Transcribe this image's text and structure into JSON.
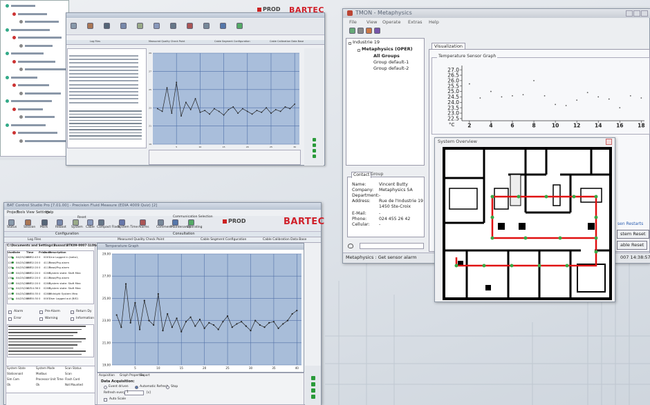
{
  "top_window": {
    "brand": "BARTEC",
    "prod": "PROD",
    "tabs": [
      "Log Files",
      "Measured Quality Check Point",
      "Cable Segment Configuration",
      "Cable Calibration Data Base"
    ],
    "chart": {
      "type": "line",
      "x": [
        1,
        2,
        3,
        4,
        5,
        6,
        7,
        8,
        9,
        10,
        11,
        12,
        13,
        14,
        15,
        16,
        17,
        18,
        19,
        20,
        21,
        22,
        23,
        24,
        25,
        26,
        27,
        28,
        29,
        30
      ],
      "values": [
        22.9,
        22.6,
        25.2,
        22.4,
        25.8,
        22.1,
        23.6,
        22.8,
        24.0,
        22.5,
        22.7,
        22.3,
        22.9,
        22.6,
        22.2,
        22.8,
        23.1,
        22.4,
        22.9,
        22.6,
        22.3,
        22.7,
        22.5,
        23.0,
        22.4,
        22.8,
        22.6,
        23.1,
        22.9,
        23.4
      ],
      "xlim": [
        0,
        31
      ],
      "ylim": [
        19,
        29
      ],
      "xticks": [
        5,
        10,
        15,
        20,
        25,
        30
      ],
      "yticks": [
        19,
        21,
        23,
        25,
        27,
        29
      ],
      "color": "#222222",
      "grid": true
    }
  },
  "main_window": {
    "title": "BAT Control Studio Pro [7.01.00] - Precision Fluid Measure (EDIA 4009 Quiz) [2]",
    "menu": [
      "Project",
      "Tools",
      "View",
      "Settings",
      "Help"
    ],
    "toolbar": [
      "Status",
      "Session",
      "Mark",
      "Reboot",
      "System",
      "Cable",
      "Compact Flash",
      "System Time",
      "Alarms",
      "Comment",
      "Maintenance",
      "Operating"
    ],
    "reset": "Reset",
    "comm": "Communication Selection",
    "brand": "BARTEC",
    "prod": "PROD",
    "tabs": [
      "Configuration",
      "Consultation"
    ],
    "subtabs": [
      "Log Files",
      "Measured Quality Check Point",
      "Cable Segment Configuration",
      "Cable Calibration Data Base"
    ],
    "path": "C:\\Documents and Settings\\Bussoz\\BTK09-0007-1LOG",
    "log": {
      "columns": [
        "User",
        "Date",
        "Time",
        "Prior",
        "Code",
        "Description"
      ],
      "rows": [
        [
          "128",
          "04/25/2007",
          "09:02:43",
          "0",
          "0007",
          "Line Logged in (beta1,"
        ],
        [
          "128",
          "04/25/2007",
          "09:02:20",
          "0",
          "4113",
          "Read/Prg alarm"
        ],
        [
          "129",
          "04/25/2007",
          "09:02:20",
          "0",
          "4113",
          "Read/Prg alarm"
        ],
        [
          "128",
          "04/25/2007",
          "09:02:20",
          "0",
          "0208",
          "System state: Stoft Mea"
        ],
        [
          "130",
          "04/25/2007",
          "09:02:20",
          "0",
          "4113",
          "Read/Prg alarm"
        ],
        [
          "128",
          "04/25/2007",
          "09:02:20",
          "0",
          "0208",
          "System state: Stoft Mea"
        ],
        [
          "170",
          "04/25/2007",
          "11:14:36",
          "0",
          "0208",
          "System state: Stoft Mea"
        ],
        [
          "119",
          "04/25/2007",
          "09:00:35",
          "0",
          "0208",
          "Midnight System Mea"
        ],
        [
          "170",
          "04/25/2007",
          "09:00:30",
          "0",
          "0007",
          "User Logged out (BIS1"
        ]
      ]
    },
    "filters": [
      "Alarm",
      "Pre-Alarm",
      "Return Dy",
      "Error",
      "Warning",
      "Information"
    ],
    "info": [
      [
        "System State",
        "System Mode",
        "Scan Status"
      ],
      [
        "Stationnaid",
        "Modbus",
        "Scan"
      ],
      [
        "Sim Com",
        "Processor Unit Time",
        "Flash Card"
      ],
      [
        "Ok",
        "Ok",
        "Not Mounted"
      ]
    ],
    "chart": {
      "type": "line",
      "title": "Temperature Graph",
      "x": [
        1,
        2,
        3,
        4,
        5,
        6,
        7,
        8,
        9,
        10,
        11,
        12,
        13,
        14,
        15,
        16,
        17,
        18,
        19,
        20,
        21,
        22,
        23,
        24,
        25,
        26,
        27,
        28,
        29,
        30,
        31,
        32,
        33,
        34,
        35,
        36,
        37,
        38,
        39,
        40
      ],
      "values": [
        23.5,
        22.4,
        26.3,
        22.8,
        24.6,
        22.2,
        24.8,
        23.0,
        22.6,
        25.4,
        22.1,
        23.6,
        22.4,
        23.2,
        22.0,
        22.9,
        23.3,
        22.5,
        23.1,
        22.3,
        22.8,
        22.6,
        22.2,
        22.9,
        23.4,
        22.4,
        22.7,
        22.9,
        22.5,
        22.1,
        23.0,
        22.6,
        22.4,
        22.8,
        22.9,
        22.3,
        22.7,
        23.0,
        23.6,
        23.9
      ],
      "xlim": [
        0,
        41
      ],
      "ylim": [
        19,
        29
      ],
      "xticks": [
        5,
        10,
        15,
        20,
        25,
        30,
        35,
        40
      ],
      "yticks": [
        {
          "value": 19,
          "label": "19,00"
        },
        {
          "value": 21,
          "label": "21,00"
        },
        {
          "value": 23,
          "label": "23,00"
        },
        {
          "value": 25,
          "label": "25,00"
        },
        {
          "value": 27,
          "label": "27,00"
        },
        {
          "value": 29,
          "label": "29,00"
        }
      ],
      "color": "#222222",
      "grid": true
    },
    "acq": {
      "tabs": [
        "Acquisition",
        "Graph Properties",
        "Export"
      ],
      "label": "Data Acquisition:",
      "options": [
        "Event driven",
        "Automatic Refresh",
        "Stop"
      ],
      "refresh": "Refresh every",
      "interval": 1,
      "unit": "[s]",
      "auto": "Auto Scale"
    }
  },
  "tmon": {
    "title": "TMON - Metaphysics",
    "menu": [
      "File",
      "View",
      "Operate",
      "Extras",
      "Help"
    ],
    "tree": [
      "Industrie 19",
      "Metaphysics (OPER)",
      "All Groups",
      "Group default-1",
      "Group default-2"
    ],
    "tab": "Visualization",
    "graph": {
      "type": "scatter",
      "title": "Temperature Sensor Graph",
      "x": [
        2,
        3,
        4,
        5,
        6,
        7,
        8,
        9,
        10,
        11,
        12,
        13,
        14,
        15,
        16,
        17,
        18
      ],
      "values": [
        25.7,
        24.4,
        25.0,
        24.5,
        24.6,
        24.7,
        26.0,
        24.6,
        23.8,
        23.7,
        24.2,
        24.9,
        24.5,
        24.3,
        23.5,
        24.6,
        24.4
      ],
      "xlim": [
        1.3,
        18.3
      ],
      "ylim": [
        22.3,
        27.2
      ],
      "xticks": [
        2,
        4,
        6,
        8,
        10,
        12,
        14,
        16,
        18
      ],
      "yticks": [
        {
          "value": 27,
          "label": "27.0"
        },
        26.5,
        {
          "value": 26,
          "label": "26.0"
        },
        25.5,
        {
          "value": 25,
          "label": "25.0"
        },
        24.5,
        {
          "value": 24,
          "label": "24.0"
        },
        23.5,
        {
          "value": 23,
          "label": "23.0"
        },
        22.5
      ],
      "unit": "°C",
      "color": "#555555"
    },
    "contact": {
      "tabs": [
        "Contact",
        "Group"
      ],
      "fields": [
        {
          "label": "Name:",
          "lines": [
            "Vincent Butty"
          ]
        },
        {
          "label": "Company:",
          "lines": [
            "Metaphysics SA"
          ]
        },
        {
          "label": "Department:",
          "lines": [
            "-"
          ]
        },
        {
          "label": "Address:",
          "lines": [
            "Rue de l'Industrie 19",
            "1450 Ste-Croix"
          ]
        },
        {
          "label": "E-Mail:",
          "lines": [
            "-"
          ]
        },
        {
          "label": "Phone:",
          "lines": [
            "024 455 26 42"
          ]
        },
        {
          "label": "Cellular:",
          "lines": [
            "-"
          ]
        }
      ]
    },
    "overview": "System Overview",
    "side_label": "sen Restarts",
    "buttons": [
      "stem Reset",
      "able Reset"
    ],
    "status": "Metaphysics : Get sensor alarm",
    "time": "007 14:38:57"
  }
}
